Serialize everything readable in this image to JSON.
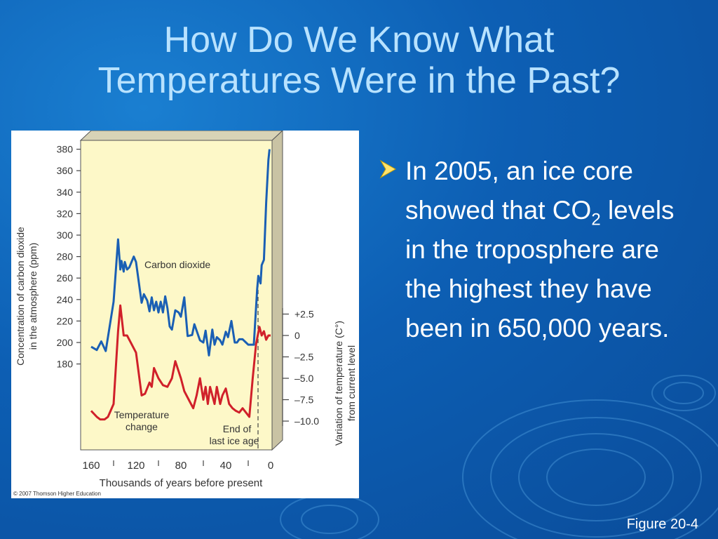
{
  "slide": {
    "title_line1": "How Do We Know What",
    "title_line2": "Temperatures Were in the Past?",
    "bullet_part1": "In 2005, an ice core showed that CO",
    "bullet_sub": "2",
    "bullet_part2": " levels in the troposphere are the highest they have been in 650,000 years.",
    "caption": "Figure 20-4",
    "bullet_icon": "arrow-bullet-icon",
    "colors": {
      "background": "#0d5fb4",
      "title": "#b8e2ff",
      "co2_line": "#1a5fb4",
      "temperature_line": "#d0202a",
      "plot_background": "#fdf8c8"
    }
  },
  "chart_data": {
    "type": "line",
    "left_ylabel": "Concentration of carbon dioxide\nin the atmosphere (ppm)",
    "right_ylabel": "Variation of temperature (C°)\nfrom current level",
    "xlabel": "Thousands of years before present",
    "x_ticks": [
      160,
      120,
      80,
      40,
      0
    ],
    "left_ticks": [
      380,
      360,
      340,
      320,
      300,
      280,
      260,
      240,
      220,
      200,
      180
    ],
    "right_ticks": [
      "+2.5",
      "0",
      "–2.5",
      "–5.0",
      "–7.5",
      "–10.0"
    ],
    "xlim": [
      160,
      0
    ],
    "left_ylim": [
      180,
      380
    ],
    "right_ylim": [
      -10,
      2.5
    ],
    "annotations": [
      "Carbon dioxide",
      "Temperature\nchange",
      "End of\nlast ice age"
    ],
    "copyright": "© 2007 Thomson Higher Education",
    "series": [
      {
        "name": "Carbon dioxide",
        "axis": "left",
        "x": [
          160,
          155,
          151,
          147,
          140,
          136,
          134,
          133,
          131,
          130,
          128,
          126,
          122,
          120,
          115,
          113,
          110,
          108,
          106,
          104,
          102,
          100,
          98,
          96,
          94,
          92,
          90,
          88,
          85,
          82,
          80,
          77,
          74,
          70,
          68,
          63,
          60,
          58,
          55,
          52,
          50,
          48,
          45,
          43,
          40,
          38,
          35,
          32,
          30,
          28,
          25,
          22,
          20,
          15,
          12,
          11,
          9,
          8,
          6,
          4,
          2,
          1
        ],
        "y": [
          196,
          193,
          201,
          192,
          238,
          296,
          268,
          276,
          266,
          275,
          268,
          270,
          280,
          275,
          237,
          245,
          239,
          229,
          242,
          230,
          238,
          228,
          238,
          228,
          243,
          232,
          215,
          212,
          230,
          228,
          224,
          242,
          206,
          207,
          217,
          202,
          200,
          211,
          188,
          212,
          198,
          205,
          202,
          198,
          210,
          205,
          220,
          200,
          200,
          203,
          203,
          200,
          198,
          198,
          250,
          262,
          255,
          272,
          277,
          330,
          370,
          380
        ]
      },
      {
        "name": "Temperature change",
        "axis": "right",
        "x": [
          160,
          155,
          152,
          148,
          145,
          140,
          136,
          134,
          131,
          128,
          124,
          120,
          118,
          115,
          112,
          108,
          106,
          104,
          100,
          96,
          92,
          88,
          85,
          82,
          80,
          77,
          73,
          69,
          66,
          63,
          60,
          58,
          56,
          54,
          52,
          50,
          48,
          45,
          43,
          40,
          37,
          34,
          31,
          28,
          25,
          22,
          19,
          16,
          13,
          10,
          8,
          6,
          4,
          2,
          0
        ],
        "y": [
          -8.8,
          -9.5,
          -9.8,
          -9.8,
          -9.5,
          -8.0,
          0.5,
          3.5,
          0,
          0,
          -1.0,
          -2.0,
          -4.0,
          -7.0,
          -6.8,
          -5.5,
          -6.0,
          -3.8,
          -5.0,
          -5.8,
          -6.0,
          -5.0,
          -3.0,
          -4.2,
          -5.0,
          -6.5,
          -7.5,
          -8.5,
          -7.0,
          -5.0,
          -7.5,
          -6.0,
          -8.0,
          -6.0,
          -7.0,
          -8.0,
          -6.0,
          -8.0,
          -7.0,
          -6.2,
          -8.0,
          -8.5,
          -8.8,
          -9.0,
          -8.5,
          -9.0,
          -9.5,
          -5.0,
          -1.0,
          1.0,
          0,
          0.5,
          -0.5,
          0,
          0
        ]
      }
    ]
  }
}
